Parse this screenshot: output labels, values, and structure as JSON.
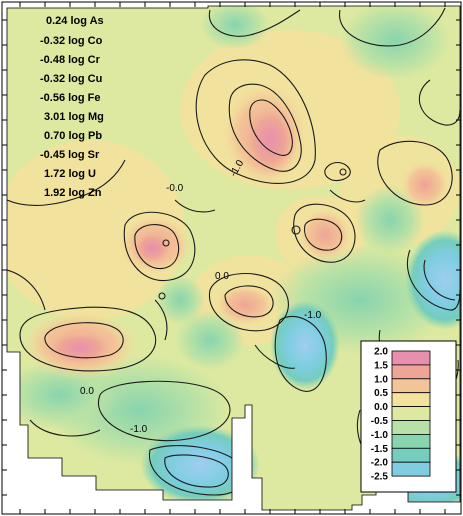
{
  "formula": [
    "0.24 log As",
    "-0.32 log Co",
    "-0.48 log Cr",
    "-0.32 log Cu",
    "-0.56 log Fe",
    "3.01 log Mg",
    "0.70 log Pb",
    "-0.45 log Sr",
    "1.72 log U",
    "1.92 log Zn"
  ],
  "contour_labels": [
    "-1.0",
    "-0.0",
    "0.0",
    "-1.0",
    "0.0",
    "-1.0"
  ],
  "legend": {
    "levels": [
      "2.0",
      "1.5",
      "1.0",
      "0.5",
      "0.0",
      "-0.5",
      "-1.0",
      "-1.5",
      "-2.0",
      "-2.5"
    ],
    "colors": [
      "#e98fae",
      "#eea596",
      "#f3c497",
      "#f3e29c",
      "#dde9a0",
      "#b7e1a6",
      "#88d4ae",
      "#74cdbd",
      "#7ecde0",
      "#9fcfee"
    ]
  },
  "colors": {
    "high": "#e98fae",
    "mid": "#dde9a0",
    "low": "#9fcfee",
    "frame": "#000000"
  }
}
